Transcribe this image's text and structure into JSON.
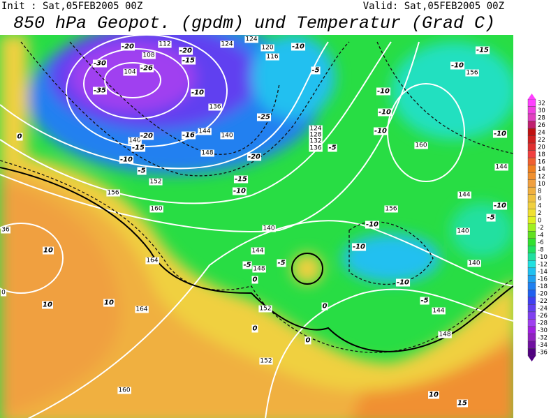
{
  "header": {
    "init": "Init : Sat,05FEB2005 00Z",
    "valid": "Valid: Sat,05FEB2005 00Z",
    "title": "850 hPa Geopot. (gpdm) und Temperatur (Grad C)"
  },
  "colorbar": {
    "labels": [
      "32",
      "30",
      "28",
      "26",
      "24",
      "22",
      "20",
      "18",
      "16",
      "14",
      "12",
      "10",
      "8",
      "6",
      "4",
      "2",
      "0",
      "-2",
      "-4",
      "-6",
      "-8",
      "-10",
      "-12",
      "-14",
      "-16",
      "-18",
      "-20",
      "-22",
      "-24",
      "-26",
      "-28",
      "-30",
      "-32",
      "-34",
      "-36"
    ],
    "colors": [
      "#ff40ff",
      "#f040e0",
      "#e040c0",
      "#c02070",
      "#c01010",
      "#d02020",
      "#e03030",
      "#f04040",
      "#f06030",
      "#f08020",
      "#f09030",
      "#f0a040",
      "#f0b040",
      "#f0c040",
      "#f0d040",
      "#f0e030",
      "#e0f020",
      "#a0f020",
      "#60e020",
      "#30e030",
      "#20e060",
      "#20e0a0",
      "#20e0e0",
      "#20c0f0",
      "#20a0f0",
      "#2080f0",
      "#2060f0",
      "#4040f0",
      "#6040f0",
      "#8040f0",
      "#a040f0",
      "#a020e0",
      "#9020c0",
      "#7010a0",
      "#500080"
    ]
  },
  "map": {
    "geopotential_labels": [
      "112",
      "124",
      "124",
      "120",
      "116",
      "108",
      "104",
      "136",
      "144",
      "140",
      "148",
      "152",
      "160",
      "156",
      "164",
      "164",
      "152",
      "160",
      "140",
      "144",
      "148",
      "152",
      "124",
      "128",
      "132",
      "136",
      "156",
      "160",
      "156",
      "144",
      "144",
      "140",
      "140",
      "144",
      "148",
      "36",
      "0",
      "140"
    ],
    "temperature_labels": [
      "-20",
      "-20",
      "-15",
      "-30",
      "-26",
      "-35",
      "-10",
      "-25",
      "-20",
      "-15",
      "-16",
      "-10",
      "-5",
      "-20",
      "-15",
      "-10",
      "-10",
      "-5",
      "-10",
      "-10",
      "-10",
      "-5",
      "-15",
      "-10",
      "-10",
      "-10",
      "-10",
      "-10",
      "-5",
      "-10",
      "-5",
      "-5",
      "-5",
      "0",
      "0",
      "0",
      "0",
      "10",
      "10",
      "10",
      "10",
      "15",
      "0"
    ]
  }
}
